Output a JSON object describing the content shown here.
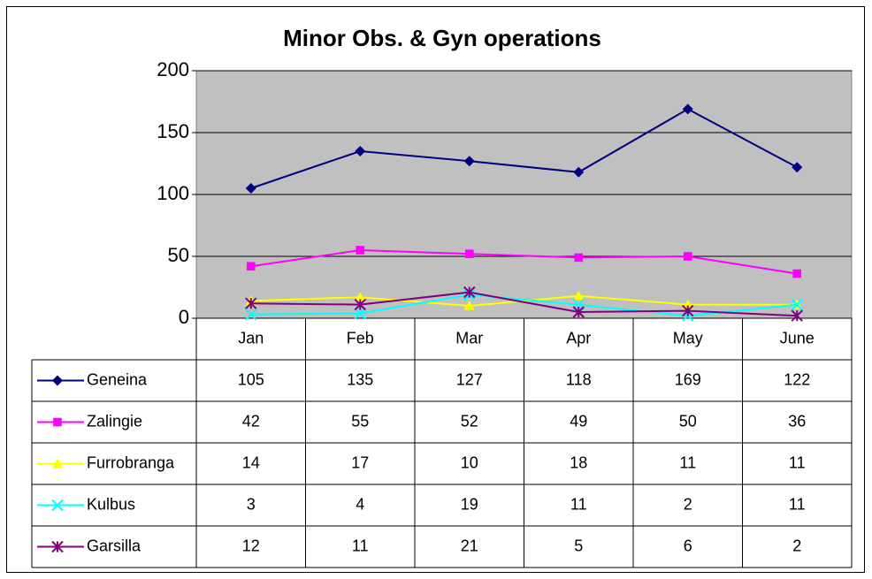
{
  "chart_data": {
    "type": "line",
    "title": "Minor Obs. & Gyn operations",
    "categories": [
      "Jan",
      "Feb",
      "Mar",
      "Apr",
      "May",
      "June"
    ],
    "ylim": [
      0,
      200
    ],
    "yticks": [
      0,
      50,
      100,
      150,
      200
    ],
    "grid": true,
    "data_table": true,
    "series": [
      {
        "name": "Geneina",
        "color": "#000080",
        "marker": "diamond",
        "values": [
          105,
          135,
          127,
          118,
          169,
          122
        ]
      },
      {
        "name": "Zalingie",
        "color": "#ff00ff",
        "marker": "square",
        "values": [
          42,
          55,
          52,
          49,
          50,
          36
        ]
      },
      {
        "name": "Furrobranga",
        "color": "#ffff00",
        "marker": "triangle",
        "values": [
          14,
          17,
          10,
          18,
          11,
          11
        ]
      },
      {
        "name": "Kulbus",
        "color": "#00ffff",
        "marker": "x",
        "values": [
          3,
          4,
          19,
          11,
          2,
          11
        ]
      },
      {
        "name": "Garsilla",
        "color": "#800080",
        "marker": "star",
        "values": [
          12,
          11,
          21,
          5,
          6,
          2
        ]
      }
    ]
  }
}
